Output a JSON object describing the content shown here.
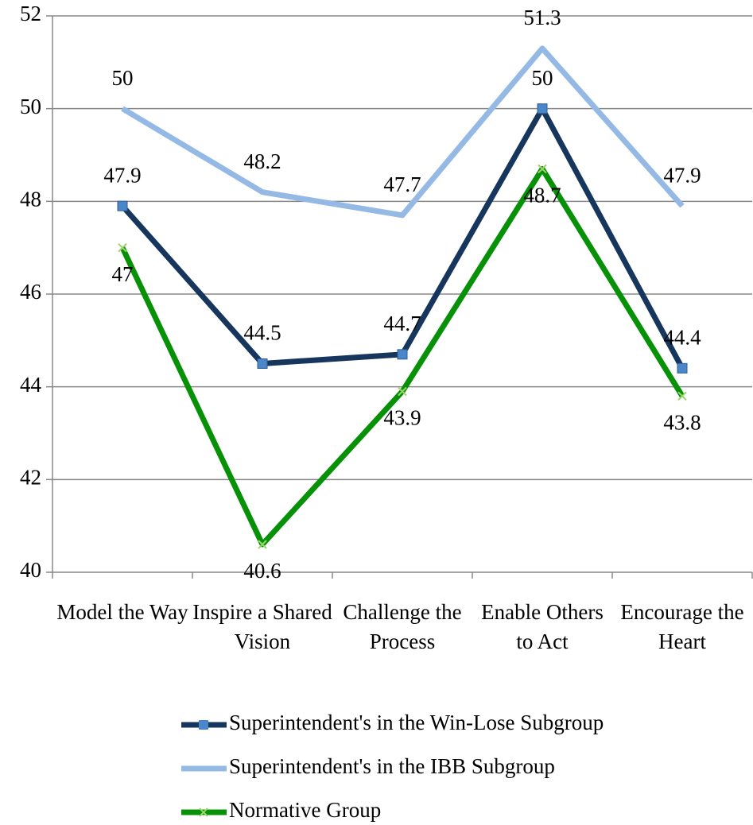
{
  "chart_data": {
    "type": "line",
    "categories": [
      "Model the Way",
      "Inspire a Shared Vision",
      "Challenge the Process",
      "Enable Others to Act",
      "Encourage the Heart"
    ],
    "series": [
      {
        "name": "Superintendent's in the Win-Lose Subgroup",
        "color": "#17365d",
        "marker": "square",
        "marker_color": "#4a86c8",
        "values": [
          47.9,
          44.5,
          44.7,
          50,
          44.4
        ]
      },
      {
        "name": "Superintendent's in the IBB Subgroup",
        "color": "#95b9e5",
        "values": [
          50,
          48.2,
          47.7,
          51.3,
          47.9
        ]
      },
      {
        "name": "Normative Group",
        "color": "#079107",
        "marker": "x",
        "marker_color": "#9bd46a",
        "values": [
          47,
          40.6,
          43.9,
          48.7,
          43.8
        ]
      }
    ],
    "ylim": [
      40,
      52
    ],
    "yticks": [
      40,
      42,
      44,
      46,
      48,
      50,
      52
    ],
    "grid": true,
    "legend": "bottom"
  }
}
